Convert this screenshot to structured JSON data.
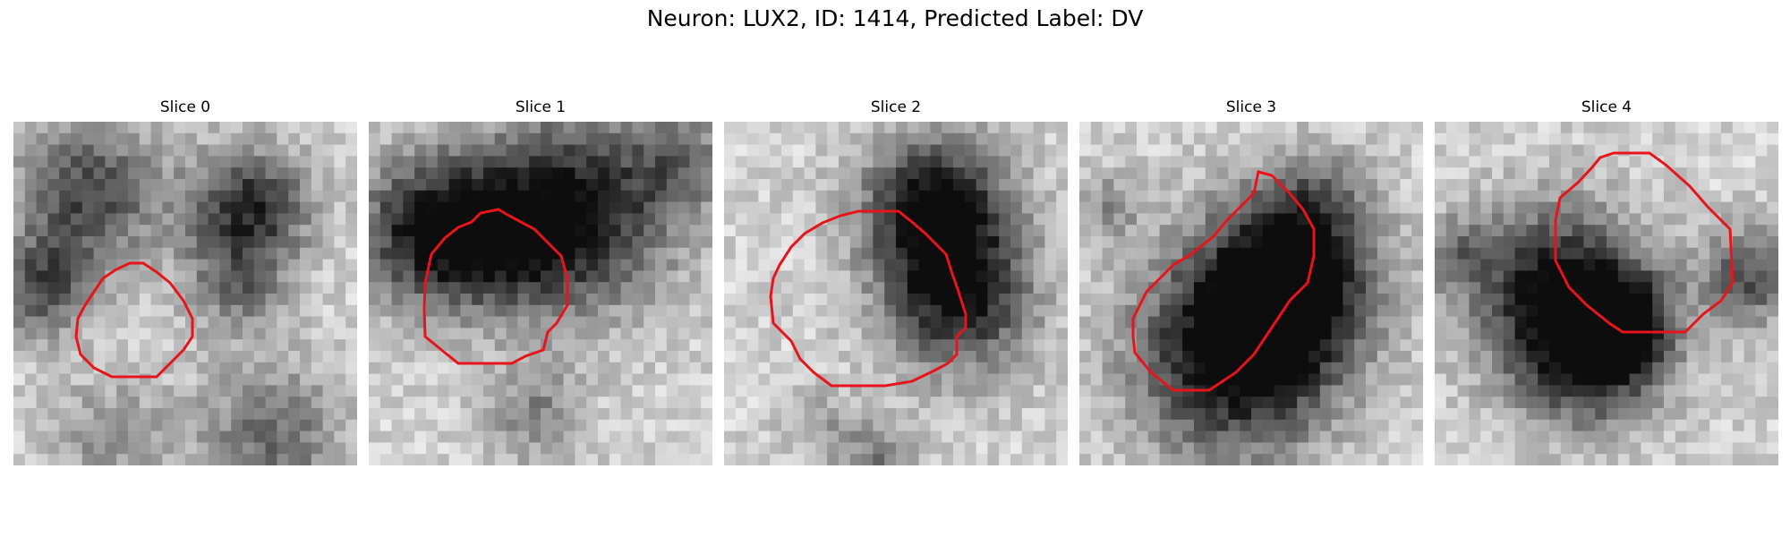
{
  "figure": {
    "title": "Neuron: LUX2, ID: 1414, Predicted Label: DV"
  },
  "outline_color": "#e8141c",
  "panels": [
    {
      "title": "Slice 0",
      "image": "grayscale-microscopy-slice",
      "contour": "roi-outline"
    },
    {
      "title": "Slice 1",
      "image": "grayscale-microscopy-slice",
      "contour": "roi-outline"
    },
    {
      "title": "Slice 2",
      "image": "grayscale-microscopy-slice",
      "contour": "roi-outline"
    },
    {
      "title": "Slice 3",
      "image": "grayscale-microscopy-slice",
      "contour": "roi-outline"
    },
    {
      "title": "Slice 4",
      "image": "grayscale-microscopy-slice",
      "contour": "roi-outline"
    }
  ]
}
